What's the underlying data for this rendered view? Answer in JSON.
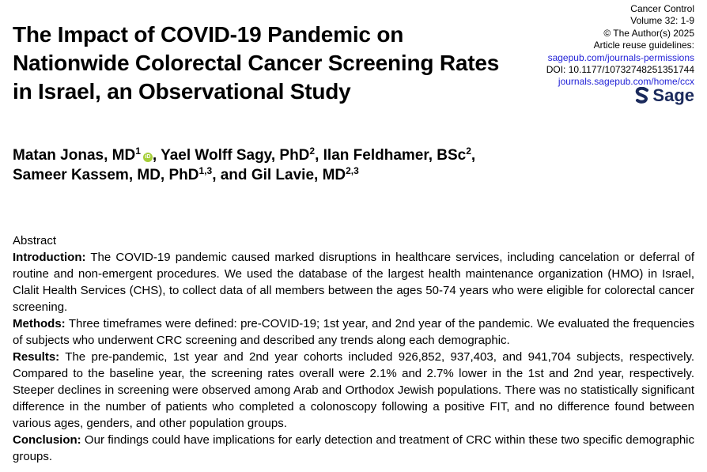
{
  "title": "The Impact of COVID-19 Pandemic on Nationwide Colorectal Cancer Screening Rates in Israel, an Observational Study",
  "journal": {
    "name": "Cancer Control",
    "volume": "Volume 32: 1-9",
    "copyright": "© The Author(s) 2025",
    "reuse_label": "Article reuse guidelines:",
    "reuse_link": "sagepub.com/journals-permissions",
    "doi": "DOI: 10.1177/10732748251351744",
    "home_link": "journals.sagepub.com/home/ccx",
    "publisher": "Sage"
  },
  "authors": [
    {
      "name": "Matan Jonas, MD",
      "aff": "1",
      "sep": ", "
    },
    {
      "name": "Yael Wolff Sagy, PhD",
      "aff": "2",
      "sep": ", "
    },
    {
      "name": "Ilan Feldhamer, BSc",
      "aff": "2",
      "sep": ","
    },
    {
      "name": "Sameer Kassem, MD, PhD",
      "aff": "1,3",
      "sep": ", and "
    },
    {
      "name": "Gil Lavie, MD",
      "aff": "2,3",
      "sep": ""
    }
  ],
  "orcid_label": "iD",
  "abstract": {
    "heading": "Abstract",
    "sections": [
      {
        "label": "Introduction:",
        "text": " The COVID-19 pandemic caused marked disruptions in healthcare services, including cancelation or deferral of routine and non-emergent procedures. We used the database of the largest health maintenance organization (HMO) in Israel, Clalit Health Services (CHS), to collect data of all members between the ages 50-74 years who were eligible for colorectal cancer screening."
      },
      {
        "label": "Methods:",
        "text": " Three timeframes were defined: pre-COVID-19; 1st year, and 2nd year of the pandemic. We evaluated the frequencies of subjects who underwent CRC screening and described any trends along each demographic."
      },
      {
        "label": "Results:",
        "text": " The pre-pandemic, 1st year and 2nd year cohorts included 926,852, 937,403, and 941,704 subjects, respectively. Compared to the baseline year, the screening rates overall were 2.1% and 2.7% lower in the 1st and 2nd year, respectively. Steeper declines in screening were observed among Arab and Orthodox Jewish populations. There was no statistically significant difference in the number of patients who completed a colonoscopy following a positive FIT, and no difference found between various ages, genders, and other population groups."
      },
      {
        "label": "Conclusion:",
        "text": " Our findings could have implications for early detection and treatment of CRC within these two specific demographic groups."
      }
    ]
  }
}
